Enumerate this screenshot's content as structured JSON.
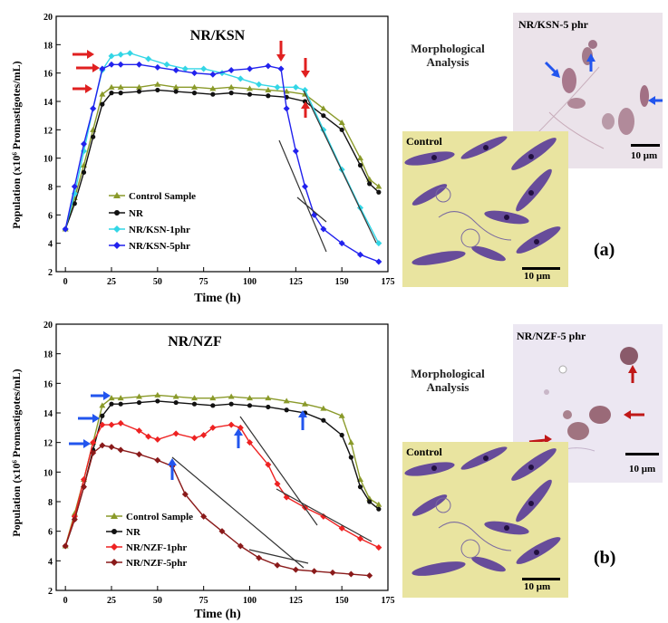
{
  "panels": [
    {
      "letter": "(a)",
      "chart_title": "NR/KSN",
      "morph_label": "Morphological Analysis",
      "control_label": "Control",
      "control_scale": "10 μm",
      "treated_label": "NR/KSN-5 phr",
      "treated_scale": "10 μm"
    },
    {
      "letter": "(b)",
      "chart_title": "NR/NZF",
      "morph_label": "Morphological Analysis",
      "control_label": "Control",
      "control_scale": "10 μm",
      "treated_label": "NR/NZF-5 phr",
      "treated_scale": "10 μm"
    }
  ],
  "colors": {
    "control": "#8a9a2a",
    "nr": "#111111",
    "ksn1": "#33d6e6",
    "ksn5": "#2222ee",
    "nzf1": "#ee2222",
    "nzf5": "#8a1a1a",
    "red_arrow": "#e02020",
    "blue_arrow": "#2255ee"
  },
  "chart_data": [
    {
      "type": "line",
      "title": "NR/KSN",
      "xlabel": "Time (h)",
      "ylabel": "Population (x10⁶ Promastigotes/mL)",
      "xlim": [
        -5,
        175
      ],
      "ylim": [
        2,
        20
      ],
      "xticks": [
        0,
        25,
        50,
        75,
        100,
        125,
        150,
        175
      ],
      "yticks": [
        2,
        4,
        6,
        8,
        10,
        12,
        14,
        16,
        18,
        20
      ],
      "legend_position": "lower-left",
      "series": [
        {
          "name": "Control Sample",
          "color": "#8a9a2a",
          "marker": "triangle",
          "points": [
            [
              0,
              5
            ],
            [
              5,
              7.2
            ],
            [
              10,
              9.5
            ],
            [
              15,
              12
            ],
            [
              20,
              14.5
            ],
            [
              25,
              15
            ],
            [
              30,
              15
            ],
            [
              40,
              15
            ],
            [
              50,
              15.2
            ],
            [
              60,
              15
            ],
            [
              70,
              15
            ],
            [
              80,
              14.9
            ],
            [
              90,
              15
            ],
            [
              100,
              14.9
            ],
            [
              110,
              14.8
            ],
            [
              120,
              14.7
            ],
            [
              130,
              14.5
            ],
            [
              140,
              13.5
            ],
            [
              150,
              12.5
            ],
            [
              160,
              10
            ],
            [
              165,
              8.5
            ],
            [
              170,
              8
            ]
          ]
        },
        {
          "name": "NR",
          "color": "#111111",
          "marker": "circle",
          "points": [
            [
              0,
              5
            ],
            [
              5,
              6.8
            ],
            [
              10,
              9
            ],
            [
              15,
              11.5
            ],
            [
              20,
              13.8
            ],
            [
              25,
              14.6
            ],
            [
              30,
              14.6
            ],
            [
              40,
              14.7
            ],
            [
              50,
              14.8
            ],
            [
              60,
              14.7
            ],
            [
              70,
              14.6
            ],
            [
              80,
              14.5
            ],
            [
              90,
              14.6
            ],
            [
              100,
              14.5
            ],
            [
              110,
              14.4
            ],
            [
              120,
              14.3
            ],
            [
              130,
              14
            ],
            [
              140,
              13
            ],
            [
              150,
              12
            ],
            [
              160,
              9.5
            ],
            [
              165,
              8.2
            ],
            [
              170,
              7.6
            ]
          ]
        },
        {
          "name": "NR/KSN-1phr",
          "color": "#33d6e6",
          "marker": "diamond",
          "points": [
            [
              0,
              5
            ],
            [
              5,
              7.5
            ],
            [
              10,
              10.5
            ],
            [
              15,
              13.5
            ],
            [
              20,
              16.2
            ],
            [
              25,
              17.2
            ],
            [
              30,
              17.3
            ],
            [
              35,
              17.4
            ],
            [
              45,
              17
            ],
            [
              55,
              16.6
            ],
            [
              65,
              16.3
            ],
            [
              75,
              16.3
            ],
            [
              85,
              16
            ],
            [
              95,
              15.6
            ],
            [
              105,
              15.2
            ],
            [
              115,
              15
            ],
            [
              125,
              15
            ],
            [
              130,
              14.8
            ],
            [
              140,
              12
            ],
            [
              150,
              9.2
            ],
            [
              160,
              6.5
            ],
            [
              170,
              4
            ]
          ]
        },
        {
          "name": "NR/KSN-5phr",
          "color": "#2222ee",
          "marker": "diamond",
          "points": [
            [
              0,
              5
            ],
            [
              5,
              8
            ],
            [
              10,
              11
            ],
            [
              15,
              13.5
            ],
            [
              20,
              16.3
            ],
            [
              25,
              16.6
            ],
            [
              30,
              16.6
            ],
            [
              40,
              16.6
            ],
            [
              50,
              16.4
            ],
            [
              60,
              16.2
            ],
            [
              70,
              16
            ],
            [
              80,
              15.9
            ],
            [
              90,
              16.2
            ],
            [
              100,
              16.3
            ],
            [
              110,
              16.5
            ],
            [
              117,
              16.3
            ],
            [
              120,
              13.5
            ],
            [
              125,
              10.5
            ],
            [
              130,
              8
            ],
            [
              135,
              6
            ],
            [
              140,
              5
            ],
            [
              150,
              4
            ],
            [
              160,
              3.2
            ],
            [
              170,
              2.7
            ]
          ]
        }
      ]
    },
    {
      "type": "line",
      "title": "NR/NZF",
      "xlabel": "Time (h)",
      "ylabel": "Population (x10⁶ Promastigotes/mL)",
      "xlim": [
        -5,
        175
      ],
      "ylim": [
        2,
        20
      ],
      "xticks": [
        0,
        25,
        50,
        75,
        100,
        125,
        150,
        175
      ],
      "yticks": [
        2,
        4,
        6,
        8,
        10,
        12,
        14,
        16,
        18,
        20
      ],
      "legend_position": "lower-left",
      "series": [
        {
          "name": "Control Sample",
          "color": "#8a9a2a",
          "marker": "triangle",
          "points": [
            [
              0,
              5
            ],
            [
              5,
              7.2
            ],
            [
              10,
              9.5
            ],
            [
              15,
              12
            ],
            [
              20,
              14.5
            ],
            [
              25,
              15
            ],
            [
              30,
              15
            ],
            [
              40,
              15.1
            ],
            [
              50,
              15.2
            ],
            [
              60,
              15.1
            ],
            [
              70,
              15
            ],
            [
              80,
              15
            ],
            [
              90,
              15.1
            ],
            [
              100,
              15
            ],
            [
              110,
              15
            ],
            [
              120,
              14.8
            ],
            [
              130,
              14.6
            ],
            [
              140,
              14.3
            ],
            [
              150,
              13.8
            ],
            [
              155,
              12
            ],
            [
              160,
              9.5
            ],
            [
              165,
              8.2
            ],
            [
              170,
              7.8
            ]
          ]
        },
        {
          "name": "NR",
          "color": "#111111",
          "marker": "circle",
          "points": [
            [
              0,
              5
            ],
            [
              5,
              6.8
            ],
            [
              10,
              9
            ],
            [
              15,
              11.5
            ],
            [
              20,
              13.8
            ],
            [
              25,
              14.6
            ],
            [
              30,
              14.6
            ],
            [
              40,
              14.7
            ],
            [
              50,
              14.8
            ],
            [
              60,
              14.7
            ],
            [
              70,
              14.6
            ],
            [
              80,
              14.5
            ],
            [
              90,
              14.6
            ],
            [
              100,
              14.5
            ],
            [
              110,
              14.4
            ],
            [
              120,
              14.2
            ],
            [
              130,
              14
            ],
            [
              140,
              13.5
            ],
            [
              150,
              12.5
            ],
            [
              155,
              11
            ],
            [
              160,
              9
            ],
            [
              165,
              8
            ],
            [
              170,
              7.5
            ]
          ]
        },
        {
          "name": "NR/NZF-1phr",
          "color": "#ee2222",
          "marker": "diamond",
          "points": [
            [
              0,
              5
            ],
            [
              5,
              7
            ],
            [
              10,
              9.5
            ],
            [
              15,
              12
            ],
            [
              20,
              13.2
            ],
            [
              25,
              13.2
            ],
            [
              30,
              13.3
            ],
            [
              40,
              12.8
            ],
            [
              45,
              12.4
            ],
            [
              50,
              12.2
            ],
            [
              60,
              12.6
            ],
            [
              70,
              12.3
            ],
            [
              75,
              12.5
            ],
            [
              80,
              13
            ],
            [
              90,
              13.2
            ],
            [
              95,
              13
            ],
            [
              100,
              12
            ],
            [
              110,
              10.5
            ],
            [
              115,
              9.2
            ],
            [
              120,
              8.3
            ],
            [
              130,
              7.6
            ],
            [
              140,
              7
            ],
            [
              150,
              6.2
            ],
            [
              160,
              5.5
            ],
            [
              170,
              4.9
            ]
          ]
        },
        {
          "name": "NR/NZF-5phr",
          "color": "#8a1a1a",
          "marker": "diamond",
          "points": [
            [
              0,
              5
            ],
            [
              5,
              6.8
            ],
            [
              10,
              9
            ],
            [
              15,
              11.3
            ],
            [
              20,
              11.8
            ],
            [
              25,
              11.7
            ],
            [
              30,
              11.5
            ],
            [
              40,
              11.2
            ],
            [
              50,
              10.8
            ],
            [
              58,
              10.4
            ],
            [
              65,
              8.5
            ],
            [
              75,
              7
            ],
            [
              85,
              6
            ],
            [
              95,
              5
            ],
            [
              105,
              4.2
            ],
            [
              115,
              3.7
            ],
            [
              125,
              3.4
            ],
            [
              135,
              3.3
            ],
            [
              145,
              3.2
            ],
            [
              155,
              3.1
            ],
            [
              165,
              3
            ]
          ]
        }
      ]
    }
  ]
}
